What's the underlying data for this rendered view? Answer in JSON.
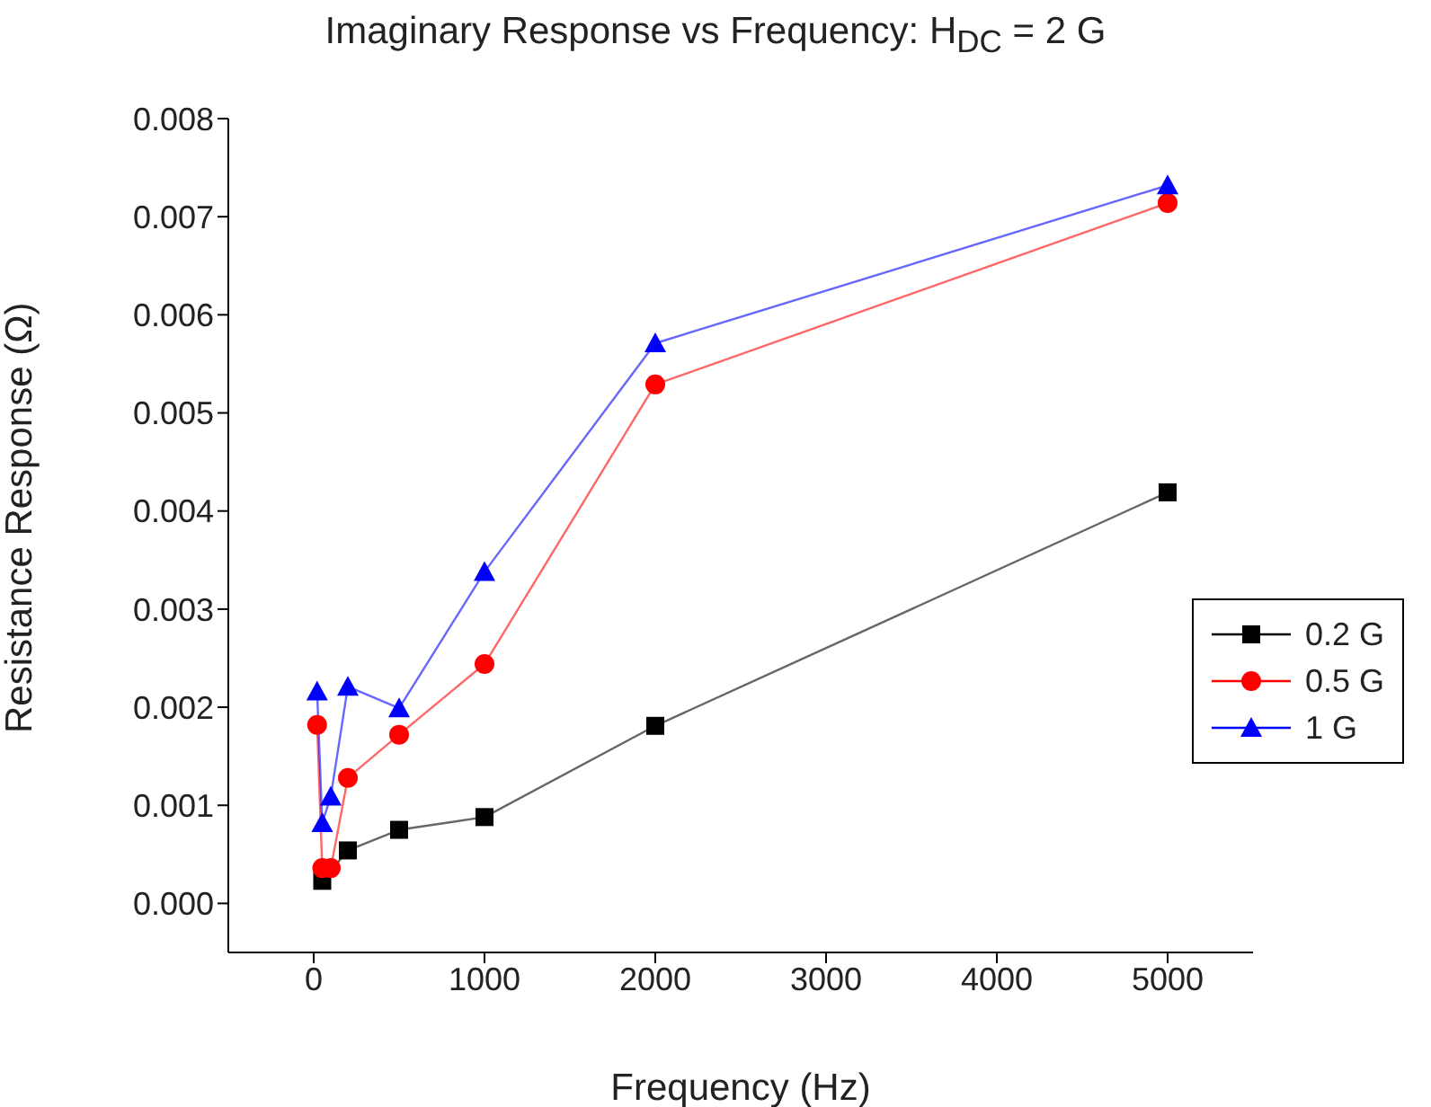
{
  "chart_data": {
    "type": "line",
    "title": "Imaginary Response vs Frequency: H$_{DC}$ = 2 G",
    "xlabel": "Frequency (Hz)",
    "ylabel": "Resistance Response (Ω)",
    "xlim": [
      -500,
      5500
    ],
    "xticks": [
      0,
      1000,
      2000,
      3000,
      4000,
      5000
    ],
    "ylim": [
      -0.0005,
      0.008
    ],
    "yticks": [
      {
        "value": 0,
        "label": "0.000"
      },
      {
        "value": 0.001,
        "label": "0.001"
      },
      {
        "value": 0.002,
        "label": "0.002"
      },
      {
        "value": 0.003,
        "label": "0.003"
      },
      {
        "value": 0.004,
        "label": "0.004"
      },
      {
        "value": 0.005,
        "label": "0.005"
      },
      {
        "value": 0.006,
        "label": "0.006"
      },
      {
        "value": 0.007,
        "label": "0.007"
      },
      {
        "value": 0.008,
        "label": "0.008"
      }
    ],
    "grid": false,
    "legend": "right",
    "line_style": "solid",
    "series": [
      {
        "name": "0.2 G",
        "color": "#000000",
        "marker": "square",
        "x": [
          50,
          200,
          500,
          1000,
          2000,
          5000
        ],
        "values": [
          0.00023,
          0.00054,
          0.00075,
          0.00088,
          0.00181,
          0.00419
        ]
      },
      {
        "name": "0.5 G",
        "color": "#ff0000",
        "marker": "circle",
        "x": [
          20,
          50,
          100,
          200,
          500,
          1000,
          2000,
          5000
        ],
        "values": [
          0.00182,
          0.00036,
          0.00036,
          0.00128,
          0.00172,
          0.00244,
          0.00529,
          0.00714
        ]
      },
      {
        "name": "1 G",
        "color": "#0000ff",
        "marker": "triangle",
        "x": [
          20,
          50,
          100,
          200,
          500,
          1000,
          2000,
          5000
        ],
        "values": [
          0.00216,
          0.00082,
          0.00109,
          0.00221,
          0.00199,
          0.00338,
          0.00571,
          0.00732
        ]
      }
    ]
  }
}
